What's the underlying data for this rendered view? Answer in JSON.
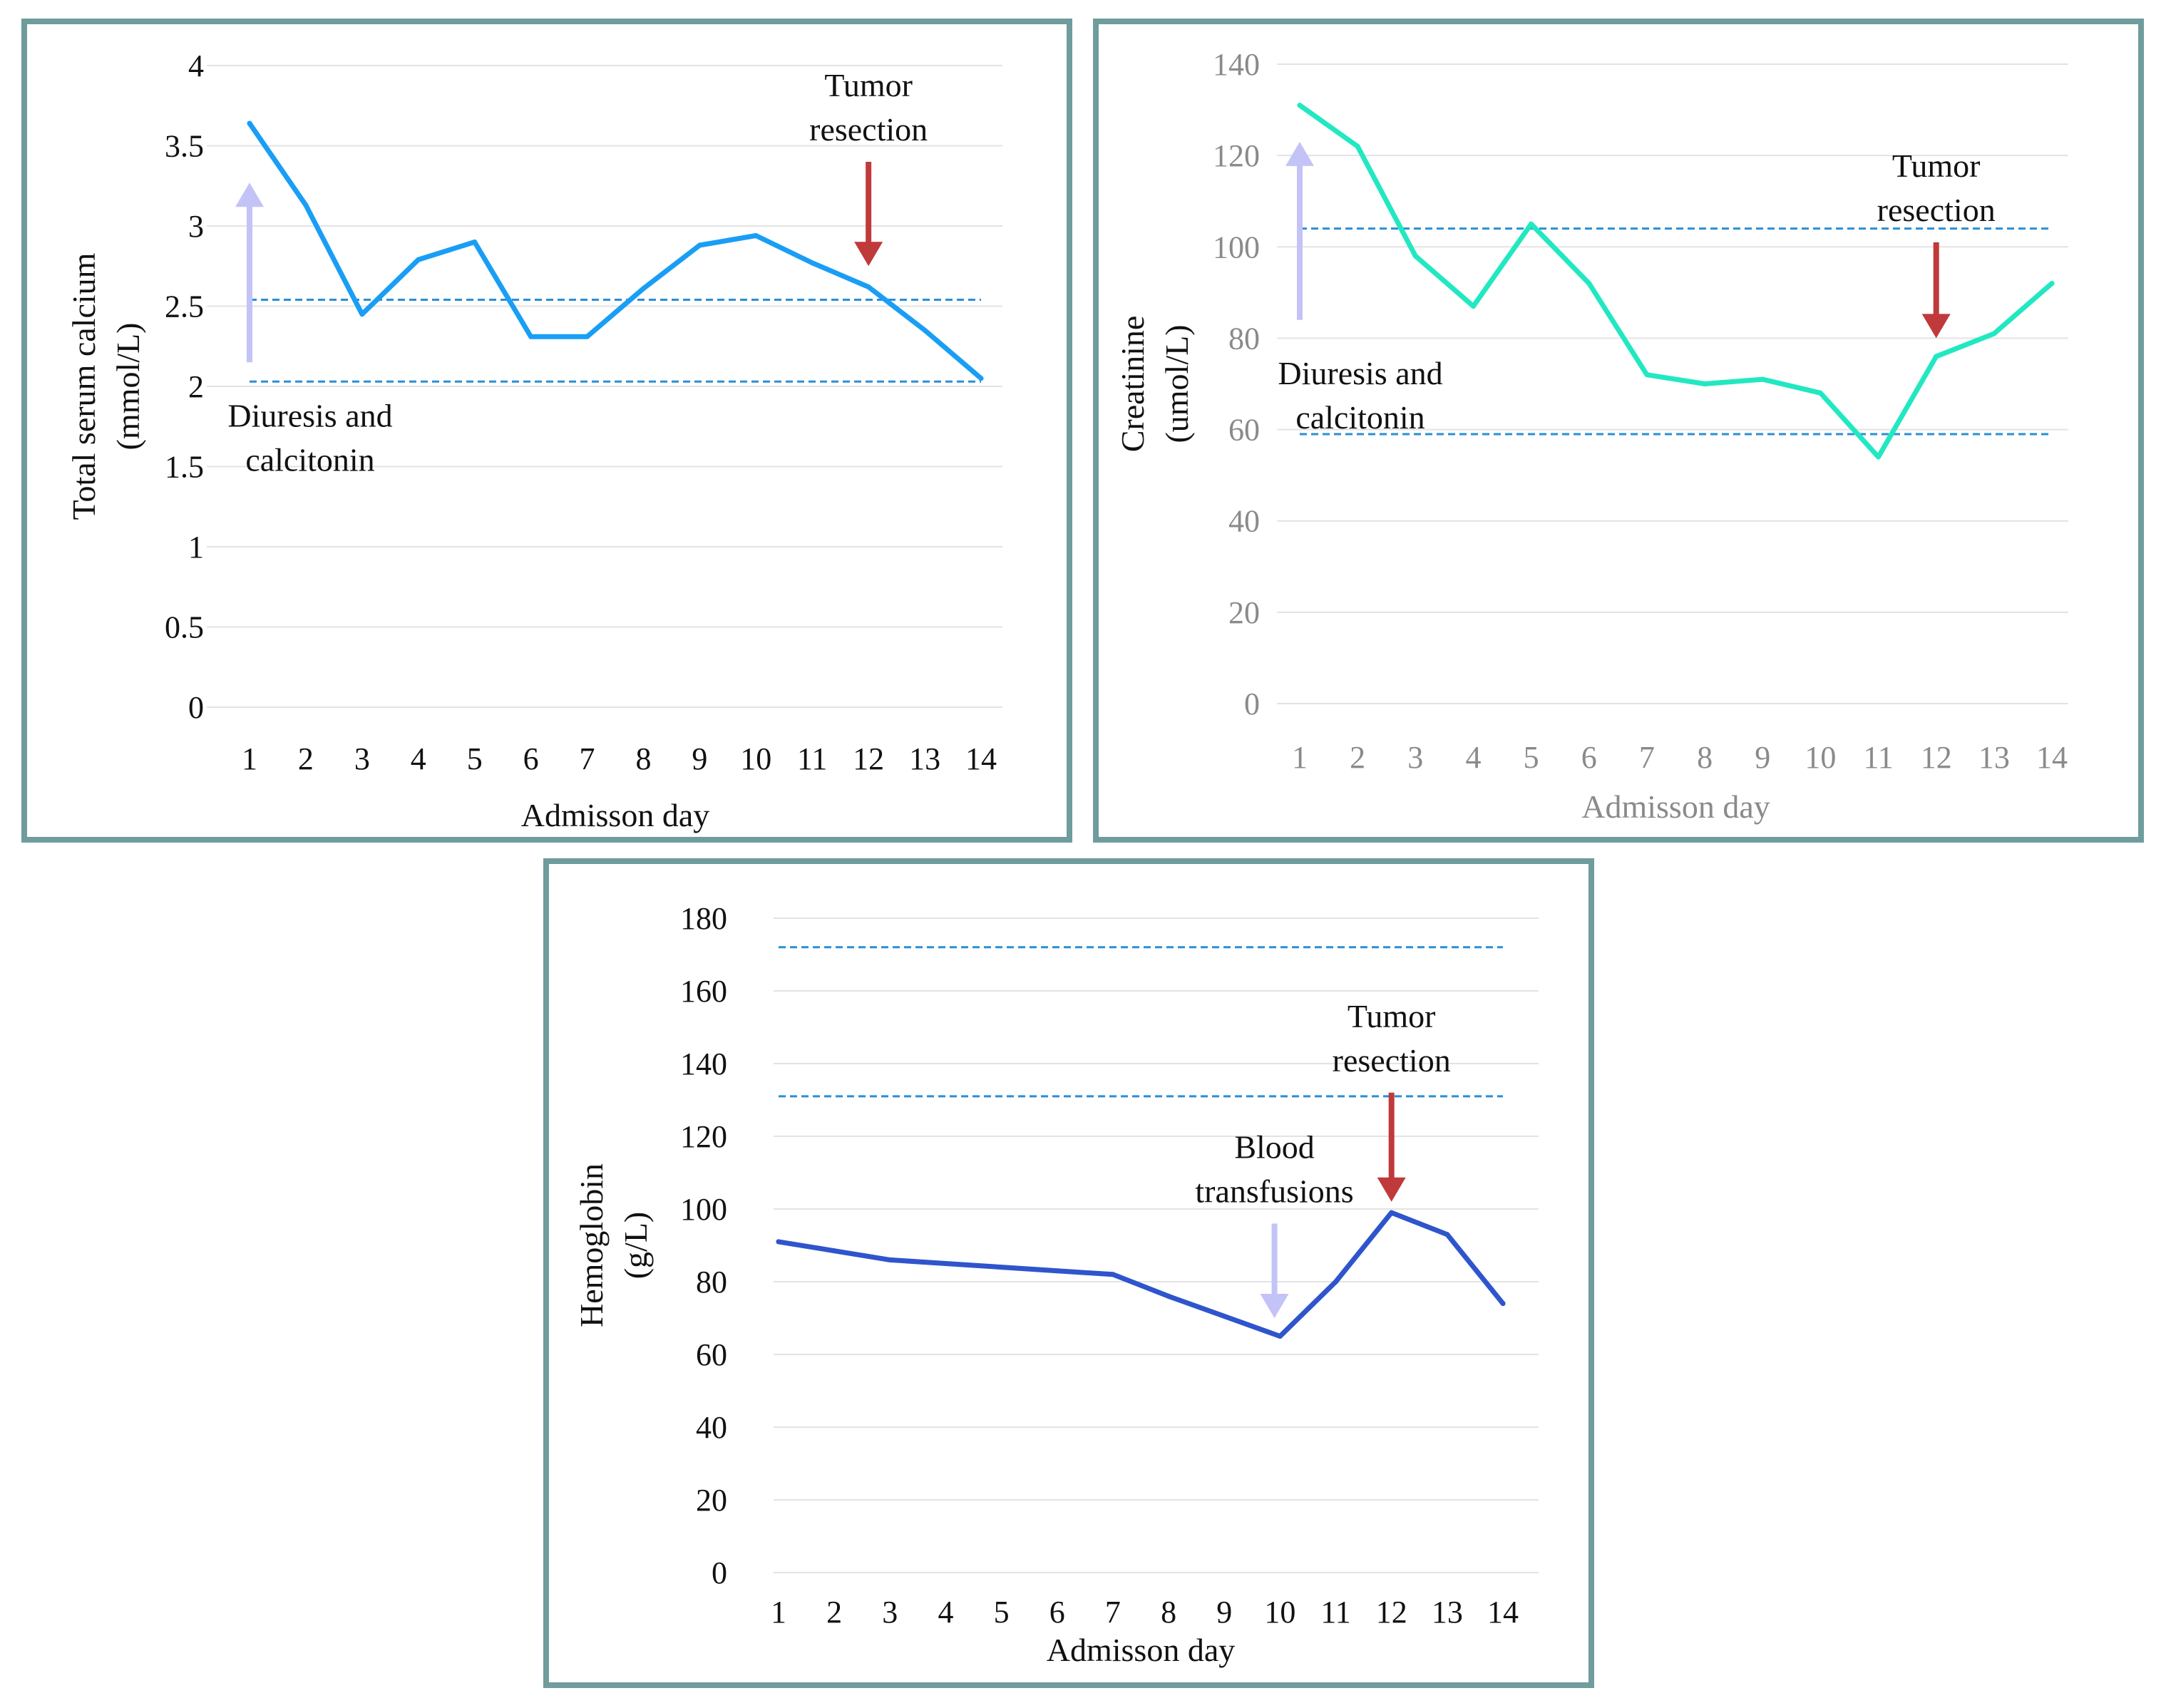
{
  "chart_data": [
    {
      "id": "calcium",
      "type": "line",
      "title": "",
      "xlabel": "Admisson day",
      "ylabel_lines": [
        "Total serum calcium",
        "(mmol/L)"
      ],
      "categories": [
        "1",
        "2",
        "3",
        "4",
        "5",
        "6",
        "7",
        "8",
        "9",
        "10",
        "11",
        "12",
        "13",
        "14"
      ],
      "series": [
        {
          "name": "Total serum calcium",
          "color": "#1a9ef5",
          "values": [
            3.64,
            3.13,
            2.45,
            2.79,
            2.9,
            2.31,
            2.31,
            2.61,
            2.88,
            2.94,
            2.77,
            2.62,
            2.35,
            2.05
          ]
        }
      ],
      "ylim": [
        0,
        4
      ],
      "yticks": [
        0,
        0.5,
        1,
        1.5,
        2,
        2.5,
        3,
        3.5,
        4
      ],
      "ytick_labels": [
        "0",
        "0.5",
        "1",
        "1.5",
        "2",
        "2.5",
        "3",
        "3.5",
        "4"
      ],
      "reference_lines": [
        2.54,
        2.03
      ],
      "reference_color": "#2a8fd6",
      "axis_text_color": "#111111",
      "annotations": [
        {
          "text_lines": [
            "Tumor",
            "resection"
          ],
          "arrow": "down",
          "color": "#c0393b",
          "x": 12,
          "y_from": 3.4,
          "y_to": 2.75
        },
        {
          "text_lines": [
            "Diuresis  and",
            "calcitonin"
          ],
          "arrow": "up",
          "color": "#c3c3f7",
          "x": 1,
          "y_from": 2.15,
          "y_to": 3.27
        }
      ]
    },
    {
      "id": "creatinine",
      "type": "line",
      "title": "",
      "xlabel": "Admisson day",
      "ylabel_lines": [
        "Creatinine",
        "(umol/L)"
      ],
      "categories": [
        "1",
        "2",
        "3",
        "4",
        "5",
        "6",
        "7",
        "8",
        "9",
        "10",
        "11",
        "12",
        "13",
        "14"
      ],
      "series": [
        {
          "name": "Creatinine",
          "color": "#22e8c2",
          "values": [
            131,
            122,
            98,
            87,
            105,
            92,
            72,
            70,
            71,
            68,
            54,
            76,
            81,
            92
          ]
        }
      ],
      "ylim": [
        0,
        140
      ],
      "yticks": [
        0,
        20,
        40,
        60,
        80,
        100,
        120,
        140
      ],
      "ytick_labels": [
        "0",
        "20",
        "40",
        "60",
        "80",
        "100",
        "120",
        "140"
      ],
      "reference_lines": [
        104,
        59
      ],
      "reference_color": "#2a8fd6",
      "axis_text_color": "#8a8a8a",
      "annotations": [
        {
          "text_lines": [
            "Tumor",
            "resection"
          ],
          "arrow": "down",
          "color": "#c0393b",
          "x": 12,
          "y_from": 101,
          "y_to": 80
        },
        {
          "text_lines": [
            "Diuresis  and",
            "calcitonin"
          ],
          "arrow": "up",
          "color": "#c3c3f7",
          "x": 1,
          "y_from": 84,
          "y_to": 123
        }
      ]
    },
    {
      "id": "hemoglobin",
      "type": "line",
      "title": "",
      "xlabel": "Admisson day",
      "ylabel_lines": [
        "Hemoglobin",
        "(g/L)"
      ],
      "categories": [
        "1",
        "2",
        "3",
        "4",
        "5",
        "6",
        "7",
        "8",
        "9",
        "10",
        "11",
        "12",
        "13",
        "14"
      ],
      "series": [
        {
          "name": "Hemoglobin",
          "color": "#2f55cc",
          "values": [
            91,
            88.5,
            86,
            85,
            84,
            83,
            82,
            76,
            70.5,
            65,
            80,
            99,
            93,
            74
          ]
        }
      ],
      "ylim": [
        0,
        180
      ],
      "yticks": [
        0,
        20,
        40,
        60,
        80,
        100,
        120,
        140,
        160,
        180
      ],
      "ytick_labels": [
        "0",
        "20",
        "40",
        "60",
        "80",
        "100",
        "120",
        "140",
        "160",
        "180"
      ],
      "reference_lines": [
        172,
        131
      ],
      "reference_color": "#2a8fd6",
      "axis_text_color": "#111111",
      "annotations": [
        {
          "text_lines": [
            "Tumor",
            "resection"
          ],
          "arrow": "down",
          "color": "#c0393b",
          "x": 12,
          "y_from": 132,
          "y_to": 102
        },
        {
          "text_lines": [
            "Blood",
            "transfusions"
          ],
          "arrow": "down",
          "color": "#c3c3f7",
          "x": 9.9,
          "y_from": 96,
          "y_to": 70
        }
      ]
    }
  ]
}
